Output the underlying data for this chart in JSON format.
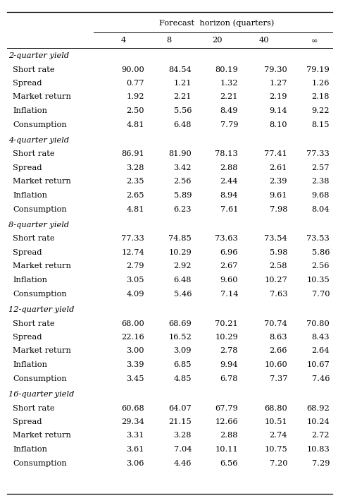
{
  "col_header_top": "Forecast  horizon (quarters)",
  "col_headers": [
    "4",
    "8",
    "20",
    "40",
    "∞"
  ],
  "sections": [
    {
      "section_label": "2-quarter yield",
      "rows": [
        {
          "label": "Short rate",
          "values": [
            "90.00",
            "84.54",
            "80.19",
            "79.30",
            "79.19"
          ]
        },
        {
          "label": "Spread",
          "values": [
            "0.77",
            "1.21",
            "1.32",
            "1.27",
            "1.26"
          ]
        },
        {
          "label": "Market return",
          "values": [
            "1.92",
            "2.21",
            "2.21",
            "2.19",
            "2.18"
          ]
        },
        {
          "label": "Inflation",
          "values": [
            "2.50",
            "5.56",
            "8.49",
            "9.14",
            "9.22"
          ]
        },
        {
          "label": "Consumption",
          "values": [
            "4.81",
            "6.48",
            "7.79",
            "8.10",
            "8.15"
          ]
        }
      ]
    },
    {
      "section_label": "4-quarter yield",
      "rows": [
        {
          "label": "Short rate",
          "values": [
            "86.91",
            "81.90",
            "78.13",
            "77.41",
            "77.33"
          ]
        },
        {
          "label": "Spread",
          "values": [
            "3.28",
            "3.42",
            "2.88",
            "2.61",
            "2.57"
          ]
        },
        {
          "label": "Market return",
          "values": [
            "2.35",
            "2.56",
            "2.44",
            "2.39",
            "2.38"
          ]
        },
        {
          "label": "Inflation",
          "values": [
            "2.65",
            "5.89",
            "8.94",
            "9.61",
            "9.68"
          ]
        },
        {
          "label": "Consumption",
          "values": [
            "4.81",
            "6.23",
            "7.61",
            "7.98",
            "8.04"
          ]
        }
      ]
    },
    {
      "section_label": "8-quarter yield",
      "rows": [
        {
          "label": "Short rate",
          "values": [
            "77.33",
            "74.85",
            "73.63",
            "73.54",
            "73.53"
          ]
        },
        {
          "label": "Spread",
          "values": [
            "12.74",
            "10.29",
            "6.96",
            "5.98",
            "5.86"
          ]
        },
        {
          "label": "Market return",
          "values": [
            "2.79",
            "2.92",
            "2.67",
            "2.58",
            "2.56"
          ]
        },
        {
          "label": "Inflation",
          "values": [
            "3.05",
            "6.48",
            "9.60",
            "10.27",
            "10.35"
          ]
        },
        {
          "label": "Consumption",
          "values": [
            "4.09",
            "5.46",
            "7.14",
            "7.63",
            "7.70"
          ]
        }
      ]
    },
    {
      "section_label": "12-quarter yield",
      "rows": [
        {
          "label": "Short rate",
          "values": [
            "68.00",
            "68.69",
            "70.21",
            "70.74",
            "70.80"
          ]
        },
        {
          "label": "Spread",
          "values": [
            "22.16",
            "16.52",
            "10.29",
            "8.63",
            "8.43"
          ]
        },
        {
          "label": "Market return",
          "values": [
            "3.00",
            "3.09",
            "2.78",
            "2.66",
            "2.64"
          ]
        },
        {
          "label": "Inflation",
          "values": [
            "3.39",
            "6.85",
            "9.94",
            "10.60",
            "10.67"
          ]
        },
        {
          "label": "Consumption",
          "values": [
            "3.45",
            "4.85",
            "6.78",
            "7.37",
            "7.46"
          ]
        }
      ]
    },
    {
      "section_label": "16-quarter yield",
      "rows": [
        {
          "label": "Short rate",
          "values": [
            "60.68",
            "64.07",
            "67.79",
            "68.80",
            "68.92"
          ]
        },
        {
          "label": "Spread",
          "values": [
            "29.34",
            "21.15",
            "12.66",
            "10.51",
            "10.24"
          ]
        },
        {
          "label": "Market return",
          "values": [
            "3.31",
            "3.28",
            "2.88",
            "2.74",
            "2.72"
          ]
        },
        {
          "label": "Inflation",
          "values": [
            "3.61",
            "7.04",
            "10.11",
            "10.75",
            "10.83"
          ]
        },
        {
          "label": "Consumption",
          "values": [
            "3.06",
            "4.46",
            "6.56",
            "7.20",
            "7.29"
          ]
        }
      ]
    }
  ],
  "figsize": [
    4.8,
    7.13
  ],
  "dpi": 100
}
